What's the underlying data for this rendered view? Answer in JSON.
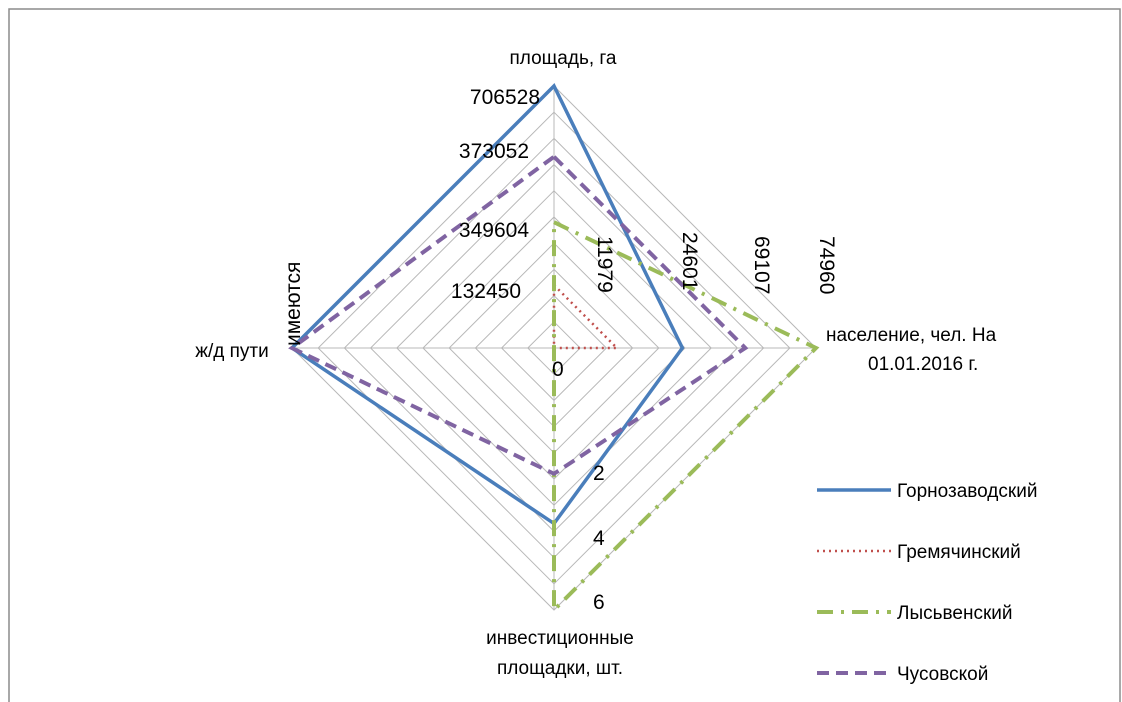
{
  "chart_data": {
    "type": "radar",
    "axes": [
      {
        "label_lines": [
          "площадь, га"
        ]
      },
      {
        "label_lines": [
          "население, чел. На",
          "01.01.2016 г."
        ]
      },
      {
        "label_lines": [
          "инвестиционные",
          "площадки, шт."
        ]
      },
      {
        "label_lines": [
          "ж/д пути"
        ]
      }
    ],
    "center_label": "0",
    "area_tick_labels": [
      "706528",
      "373052",
      "349604",
      "132450"
    ],
    "population_tick_labels": [
      "11979",
      "24601",
      "69107",
      "74960"
    ],
    "sites_tick_labels": [
      "2",
      "4",
      "6"
    ],
    "rail_tick_labels": [
      "имеются"
    ],
    "series": [
      {
        "name": "Горнозаводский",
        "color": "#4a7ebb",
        "dash": "solid",
        "values": [
          706528,
          24601,
          4,
          "имеются"
        ],
        "plot_fraction": [
          1.0,
          0.49,
          0.67,
          1.0
        ]
      },
      {
        "name": "Гремячинский",
        "color": "#c0504d",
        "dash": "dot",
        "values": [
          132450,
          11979,
          0,
          0
        ],
        "plot_fraction": [
          0.24,
          0.24,
          0.0,
          0.0
        ]
      },
      {
        "name": "Лысьвенский",
        "color": "#9bbb59",
        "dash": "dashdot",
        "values": [
          349604,
          74960,
          6,
          0
        ],
        "plot_fraction": [
          0.48,
          1.0,
          1.0,
          0.0
        ]
      },
      {
        "name": "Чусовской",
        "color": "#8064a2",
        "dash": "dash",
        "values": [
          373052,
          69107,
          2,
          "имеются"
        ],
        "plot_fraction": [
          0.73,
          0.73,
          0.48,
          1.0
        ]
      }
    ]
  }
}
